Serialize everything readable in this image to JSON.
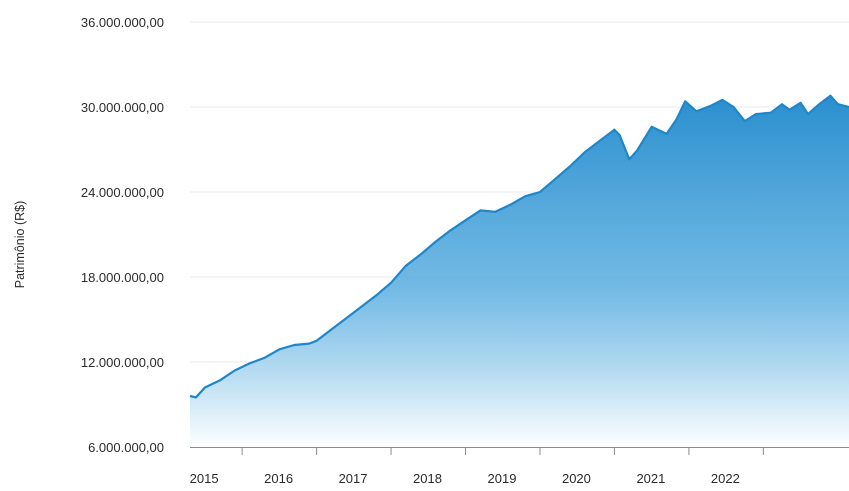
{
  "chart_data": {
    "type": "area",
    "title": "",
    "xlabel": "",
    "ylabel": "Patrimônio (R$)",
    "grid": true,
    "ylim": [
      6000000,
      36000000
    ],
    "xlim": [
      2014.3,
      2023.15
    ],
    "yticks": [
      {
        "value": 6000000,
        "label": "6.000.000,00"
      },
      {
        "value": 12000000,
        "label": "12.000.000,00"
      },
      {
        "value": 18000000,
        "label": "18.000.000,00"
      },
      {
        "value": 24000000,
        "label": "24.000.000,00"
      },
      {
        "value": 30000000,
        "label": "30.000.000,00"
      },
      {
        "value": 36000000,
        "label": "36.000.000,00"
      }
    ],
    "xticks": [
      {
        "value": 2015,
        "label": "2015"
      },
      {
        "value": 2016,
        "label": "2016"
      },
      {
        "value": 2017,
        "label": "2017"
      },
      {
        "value": 2018,
        "label": "2018"
      },
      {
        "value": 2019,
        "label": "2019"
      },
      {
        "value": 2020,
        "label": "2020"
      },
      {
        "value": 2021,
        "label": "2021"
      },
      {
        "value": 2022,
        "label": "2022"
      }
    ],
    "colors": {
      "line": "#1f86c8",
      "fill_top": "#2a8fce",
      "fill_bottom": "#ffffff",
      "axis_text": "#2b2b2b",
      "grid": "#e6e9ee"
    },
    "series": [
      {
        "x": [
          2014.3,
          2014.38,
          2014.5,
          2014.7,
          2014.9,
          2015.1,
          2015.3,
          2015.5,
          2015.7,
          2015.9,
          2016.0,
          2016.2,
          2016.4,
          2016.6,
          2016.8,
          2017.0,
          2017.2,
          2017.4,
          2017.6,
          2017.8,
          2018.0,
          2018.2,
          2018.4,
          2018.6,
          2018.8,
          2019.0,
          2019.2,
          2019.4,
          2019.6,
          2019.8,
          2020.0,
          2020.07,
          2020.2,
          2020.3,
          2020.5,
          2020.7,
          2020.83,
          2020.95,
          2021.1,
          2021.3,
          2021.45,
          2021.6,
          2021.75,
          2021.9,
          2022.1,
          2022.25,
          2022.35,
          2022.5,
          2022.6,
          2022.75,
          2022.9,
          2023.0,
          2023.15
        ],
        "values": [
          9600000,
          9500000,
          10200000,
          10700000,
          11400000,
          11900000,
          12300000,
          12900000,
          13200000,
          13300000,
          13500000,
          14300000,
          15100000,
          15900000,
          16700000,
          17600000,
          18800000,
          19600000,
          20500000,
          21300000,
          22000000,
          22700000,
          22600000,
          23100000,
          23700000,
          24000000,
          24900000,
          25800000,
          26800000,
          27600000,
          28400000,
          28000000,
          26300000,
          26900000,
          28600000,
          28100000,
          29100000,
          30400000,
          29700000,
          30100000,
          30500000,
          30000000,
          29000000,
          29500000,
          29600000,
          30200000,
          29800000,
          30300000,
          29500000,
          30200000,
          30800000,
          30200000,
          30000000
        ]
      }
    ]
  }
}
